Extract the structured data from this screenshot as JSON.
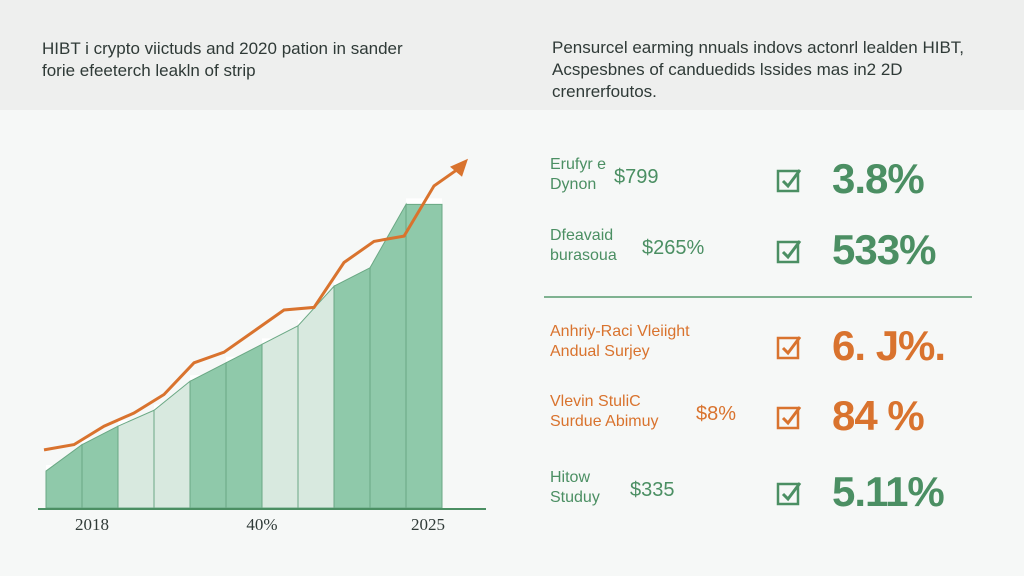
{
  "header": {
    "left_caption": "HIBT i crypto viictuds and 2020 pation in sander forie efeeterch leakln of strip",
    "right_caption": "Pensurcel earming nnuals indovs actonrl lealden HIBT, Acspesbnes of canduedids lssides mas in2 2D crenrerfoutos."
  },
  "chart_data": {
    "type": "bar",
    "categories": [
      "2018",
      "",
      "",
      "",
      "",
      "",
      "",
      "",
      "",
      "",
      "2025"
    ],
    "x_tick_labels": [
      "2018",
      "40%",
      "2025"
    ],
    "values": [
      14,
      24,
      31,
      37,
      48,
      55,
      62,
      69,
      84,
      91,
      115
    ],
    "ylim": [
      0,
      125
    ],
    "trend_line": [
      22,
      24,
      31,
      36,
      43,
      55,
      59,
      67,
      75,
      76,
      93,
      101,
      103,
      122,
      130
    ],
    "bar_colors": [
      "#8fc9aa",
      "#8fc9aa",
      "#d8e9df",
      "#d8e9df",
      "#8fc9aa",
      "#8fc9aa",
      "#d8e9df",
      "#d8e9df",
      "#8fc9aa",
      "#8fc9aa",
      "#8fc9aa"
    ],
    "line_color": "#d9732e",
    "grid": false
  },
  "stats": [
    {
      "label": "Erufyr e Dynon",
      "amount": "$799",
      "pct": "3.8%",
      "color": "green",
      "check_color": "#4b8f63"
    },
    {
      "label": "Dfeavaid burasoua",
      "amount": "$265%",
      "pct": "533%",
      "color": "green",
      "check_color": "#4b8f63"
    },
    {
      "label": "Anhriy-Raci Vleiight Andual Surjey",
      "amount": "",
      "pct": "6. J%.",
      "color": "orange",
      "check_color": "#d9732e"
    },
    {
      "label": "Vlevin StuliC Surdue Abimuy",
      "amount": "$8%",
      "pct": "84 %",
      "color": "orange",
      "check_color": "#d9732e"
    },
    {
      "label": "Hitow Studuy",
      "amount": "$335",
      "pct": "5.11%",
      "color": "green",
      "check_color": "#4b8f63"
    }
  ]
}
